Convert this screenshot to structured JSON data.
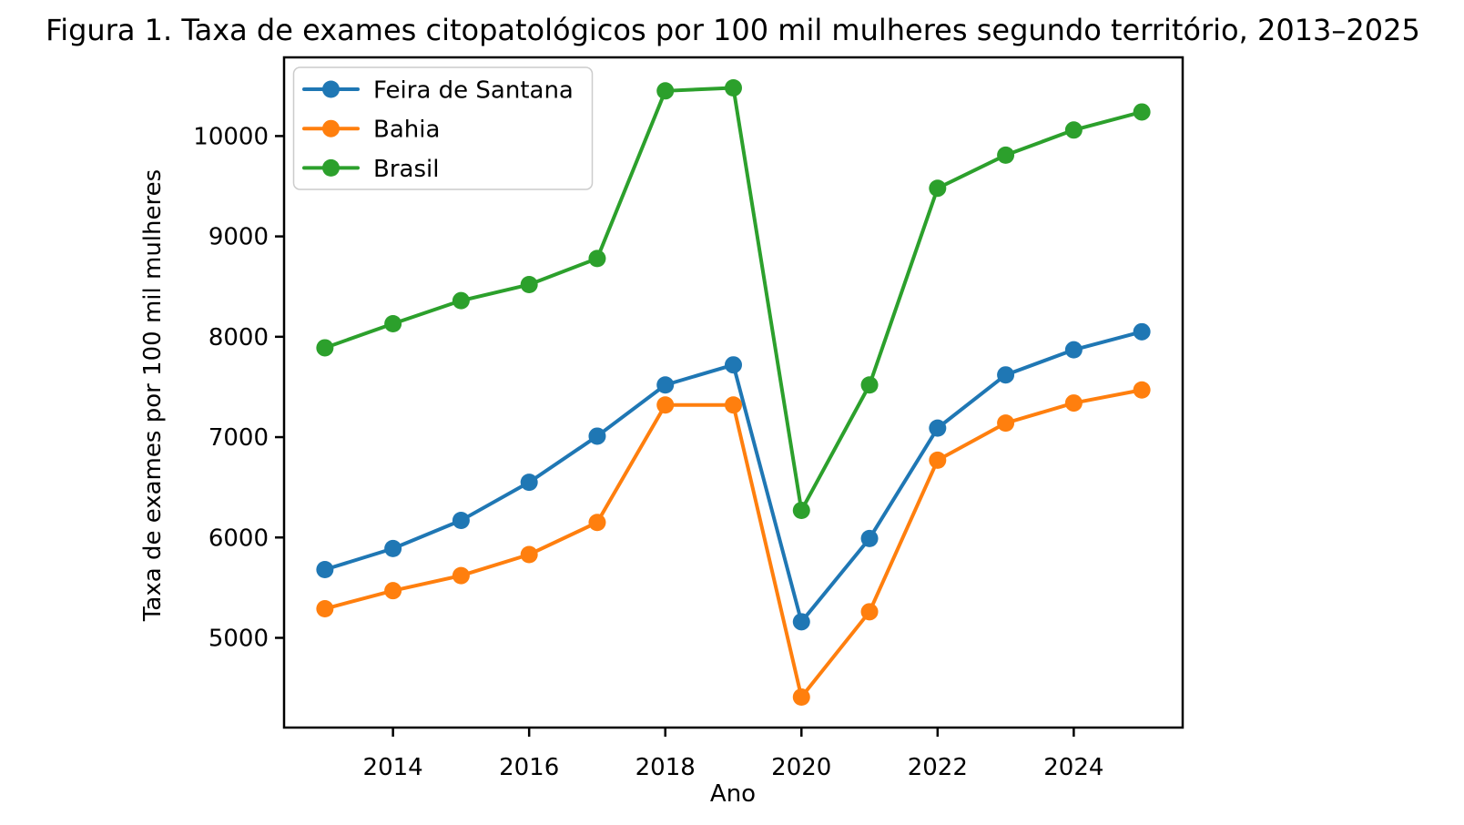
{
  "title": "Figura 1. Taxa de exames citopatológicos por 100 mil mulheres segundo território, 2013–2025",
  "chart_data": {
    "type": "line",
    "title": "Figura 1. Taxa de exames citopatológicos por 100 mil mulheres segundo território, 2013–2025",
    "xlabel": "Ano",
    "ylabel": "Taxa de exames por 100 mil mulheres",
    "x": [
      2013,
      2014,
      2015,
      2016,
      2017,
      2018,
      2019,
      2020,
      2021,
      2022,
      2023,
      2024,
      2025
    ],
    "series": [
      {
        "name": "Feira de Santana",
        "color": "#1f77b4",
        "values": [
          5680,
          5890,
          6170,
          6550,
          7010,
          7520,
          7720,
          5160,
          5990,
          7090,
          7620,
          7870,
          8050
        ]
      },
      {
        "name": "Bahia",
        "color": "#ff7f0e",
        "values": [
          5290,
          5470,
          5620,
          5830,
          6150,
          7320,
          7320,
          4410,
          5260,
          6770,
          7140,
          7340,
          7470
        ]
      },
      {
        "name": "Brasil",
        "color": "#2ca02c",
        "values": [
          7890,
          8130,
          8360,
          8520,
          8780,
          10450,
          10480,
          6270,
          7520,
          9480,
          9810,
          10060,
          10240
        ]
      }
    ],
    "xticks": [
      2014,
      2016,
      2018,
      2020,
      2022,
      2024
    ],
    "yticks": [
      5000,
      6000,
      7000,
      8000,
      9000,
      10000
    ],
    "xlim": [
      2012.4,
      2025.6
    ],
    "ylim": [
      4106,
      10784
    ],
    "grid": false,
    "legend_position": "upper left",
    "marker": "circle",
    "line_width": 4,
    "marker_radius": 9.5,
    "axis_color": "#000000",
    "legend_border_color": "#cccccc",
    "background_color": "#ffffff"
  }
}
